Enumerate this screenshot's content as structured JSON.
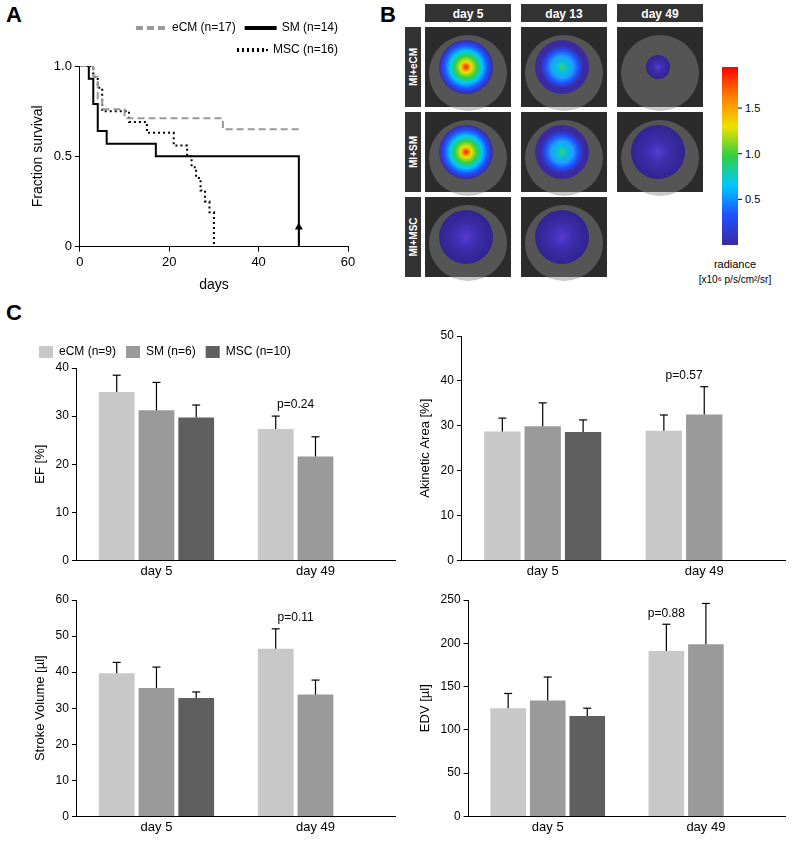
{
  "chart_data": [
    {
      "panel": "A",
      "type": "line",
      "xlabel": "days",
      "ylabel": "Fraction survival",
      "xlim": [
        0,
        60
      ],
      "xticks": [
        0,
        20,
        40,
        60
      ],
      "ylim": [
        0,
        1
      ],
      "yticks": [
        0,
        0.5,
        {
          "value": 1,
          "label": "1.0"
        }
      ],
      "grid": false,
      "legend": "top-right",
      "arrow_at": 49,
      "series": [
        {
          "name": "eCM (n=17)",
          "color": "#999999",
          "line_style": "dashed",
          "marker": "none",
          "x": [
            0,
            3,
            4,
            5,
            10,
            32,
            49
          ],
          "values": [
            1,
            0.94,
            0.82,
            0.76,
            0.71,
            0.65,
            0.65
          ]
        },
        {
          "name": "SM (n=14)",
          "color": "#000000",
          "line_style": "solid",
          "marker": "none",
          "x": [
            0,
            2,
            3,
            4,
            6,
            17,
            49
          ],
          "values": [
            1,
            0.93,
            0.79,
            0.64,
            0.57,
            0.5,
            0
          ]
        },
        {
          "name": "MSC (n=16)",
          "color": "#000000",
          "line_style": "dotted",
          "marker": "none",
          "x": [
            0,
            3,
            4,
            5,
            11,
            15,
            21,
            24,
            25,
            26,
            27,
            28,
            29,
            30
          ],
          "values": [
            1,
            0.94,
            0.88,
            0.75,
            0.69,
            0.63,
            0.56,
            0.5,
            0.44,
            0.38,
            0.31,
            0.25,
            0.19,
            0
          ]
        }
      ]
    },
    {
      "panel": "C",
      "type": "bar",
      "categories": [
        "day 5",
        "day 49"
      ],
      "grid": false,
      "legend": "top-left",
      "series": [
        {
          "name": "eCM (n=9)",
          "color": "#c8c8c8"
        },
        {
          "name": "SM (n=6)",
          "color": "#9a9a9a"
        },
        {
          "name": "MSC (n=10)",
          "color": "#5f5f5f"
        }
      ],
      "subplots": [
        {
          "ylabel": "EF [%]",
          "ylim": [
            0,
            40
          ],
          "yticks": [
            0,
            10,
            20,
            30,
            40
          ],
          "values": [
            [
              35,
              27.3
            ],
            [
              31.2,
              21.6
            ],
            [
              29.7,
              null
            ]
          ],
          "errors": [
            [
              3.5,
              2.7
            ],
            [
              5.8,
              4.1
            ],
            [
              2.6,
              null
            ]
          ],
          "annotations": [
            {
              "category": "day 49",
              "text": "p=0.24"
            }
          ]
        },
        {
          "ylabel": "Akinetic Area [%]",
          "ylim": [
            0,
            50
          ],
          "yticks": [
            0,
            10,
            20,
            30,
            40,
            50
          ],
          "values": [
            [
              28.7,
              28.9
            ],
            [
              29.9,
              32.5
            ],
            [
              28.6,
              null
            ]
          ],
          "errors": [
            [
              3,
              3.5
            ],
            [
              5.2,
              6.2
            ],
            [
              2.7,
              null
            ]
          ],
          "annotations": [
            {
              "category": "day 49",
              "text": "p=0.57"
            }
          ]
        },
        {
          "ylabel": "Stroke Volume [µl]",
          "ylim": [
            0,
            60
          ],
          "yticks": [
            0,
            10,
            20,
            30,
            40,
            50,
            60
          ],
          "values": [
            [
              39.7,
              46.5
            ],
            [
              35.6,
              33.8
            ],
            [
              32.8,
              null
            ]
          ],
          "errors": [
            [
              3,
              5.5
            ],
            [
              5.8,
              4
            ],
            [
              1.7,
              null
            ]
          ],
          "annotations": [
            {
              "category": "day 49",
              "text": "p=0.11"
            }
          ]
        },
        {
          "ylabel": "EDV [µl]",
          "ylim": [
            0,
            250
          ],
          "yticks": [
            0,
            50,
            100,
            150,
            200,
            250
          ],
          "values": [
            [
              125,
              191
            ],
            [
              134,
              199
            ],
            [
              116,
              null
            ]
          ],
          "errors": [
            [
              17,
              31
            ],
            [
              27,
              47
            ],
            [
              9,
              null
            ]
          ],
          "annotations": [
            {
              "category": "day 49",
              "text": "p=0.88"
            }
          ]
        }
      ]
    }
  ],
  "image_panel": {
    "panel": "B",
    "columns": [
      "day 5",
      "day 13",
      "day 49"
    ],
    "rows": [
      {
        "label": "MI+eCM",
        "images": [
          true,
          true,
          true
        ]
      },
      {
        "label": "MI+SM",
        "images": [
          true,
          true,
          true
        ]
      },
      {
        "label": "MI+MSC",
        "images": [
          true,
          true,
          false
        ]
      }
    ],
    "colorbar": {
      "title": "radiance",
      "unit": "[x10⁶ p/s/cm²/sr]",
      "range": [
        0,
        1.95
      ],
      "ticks": [
        0.5,
        {
          "value": 1,
          "label": "1.0"
        },
        1.5
      ]
    }
  }
}
